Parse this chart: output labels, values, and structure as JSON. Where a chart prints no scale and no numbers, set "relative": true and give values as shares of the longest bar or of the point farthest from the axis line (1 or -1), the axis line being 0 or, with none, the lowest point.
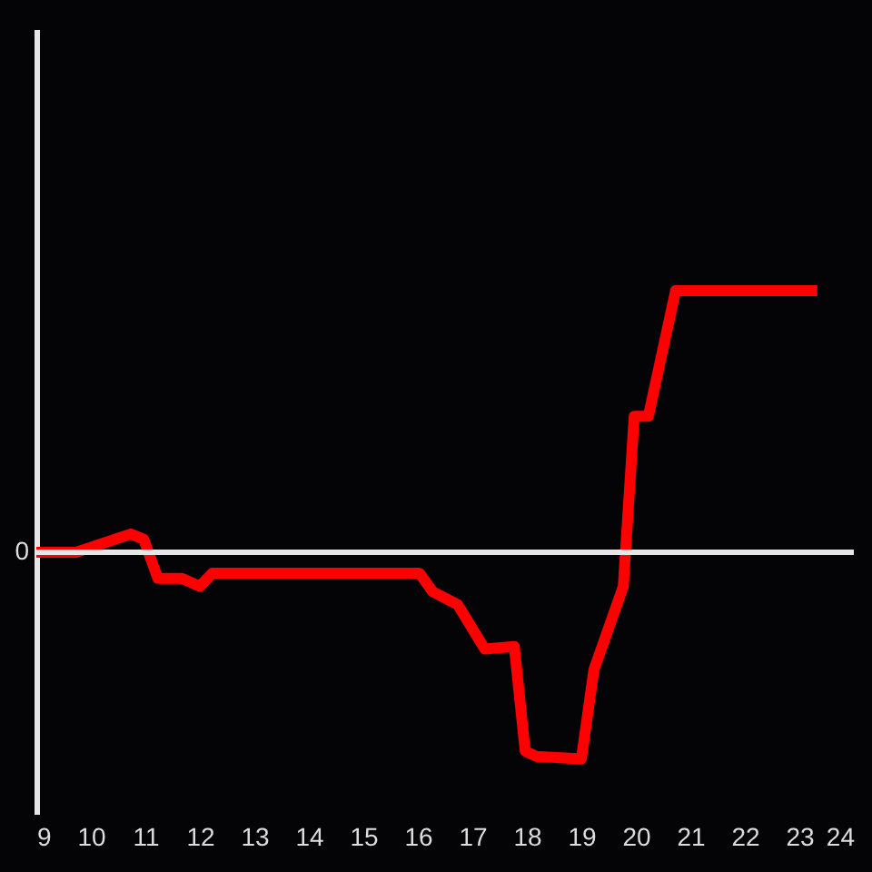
{
  "chart_data": {
    "type": "line",
    "relative": true,
    "x": [
      9,
      9.73,
      10.73,
      10.97,
      11.23,
      11.67,
      12.0,
      12.23,
      16.03,
      16.27,
      16.73,
      17.23,
      17.77,
      17.97,
      18.17,
      19.0,
      19.23,
      19.77,
      19.97,
      20.23,
      20.73,
      23.33
    ],
    "values": [
      0,
      0,
      0.07,
      0.05,
      -0.1,
      -0.1,
      -0.13,
      -0.08,
      -0.08,
      -0.15,
      -0.2,
      -0.37,
      -0.36,
      -0.76,
      -0.78,
      -0.79,
      -0.45,
      -0.13,
      0.52,
      0.52,
      1,
      1
    ],
    "color": "#ff0000",
    "xlim": [
      9,
      24
    ],
    "xticks": [
      9,
      10,
      11,
      12,
      13,
      14,
      15,
      16,
      17,
      18,
      19,
      20,
      21,
      22,
      23,
      24
    ],
    "ref_lines": [
      {
        "axis": "y",
        "value": 0,
        "label": "0",
        "color": "#e6e6e6"
      }
    ],
    "grid": false
  }
}
